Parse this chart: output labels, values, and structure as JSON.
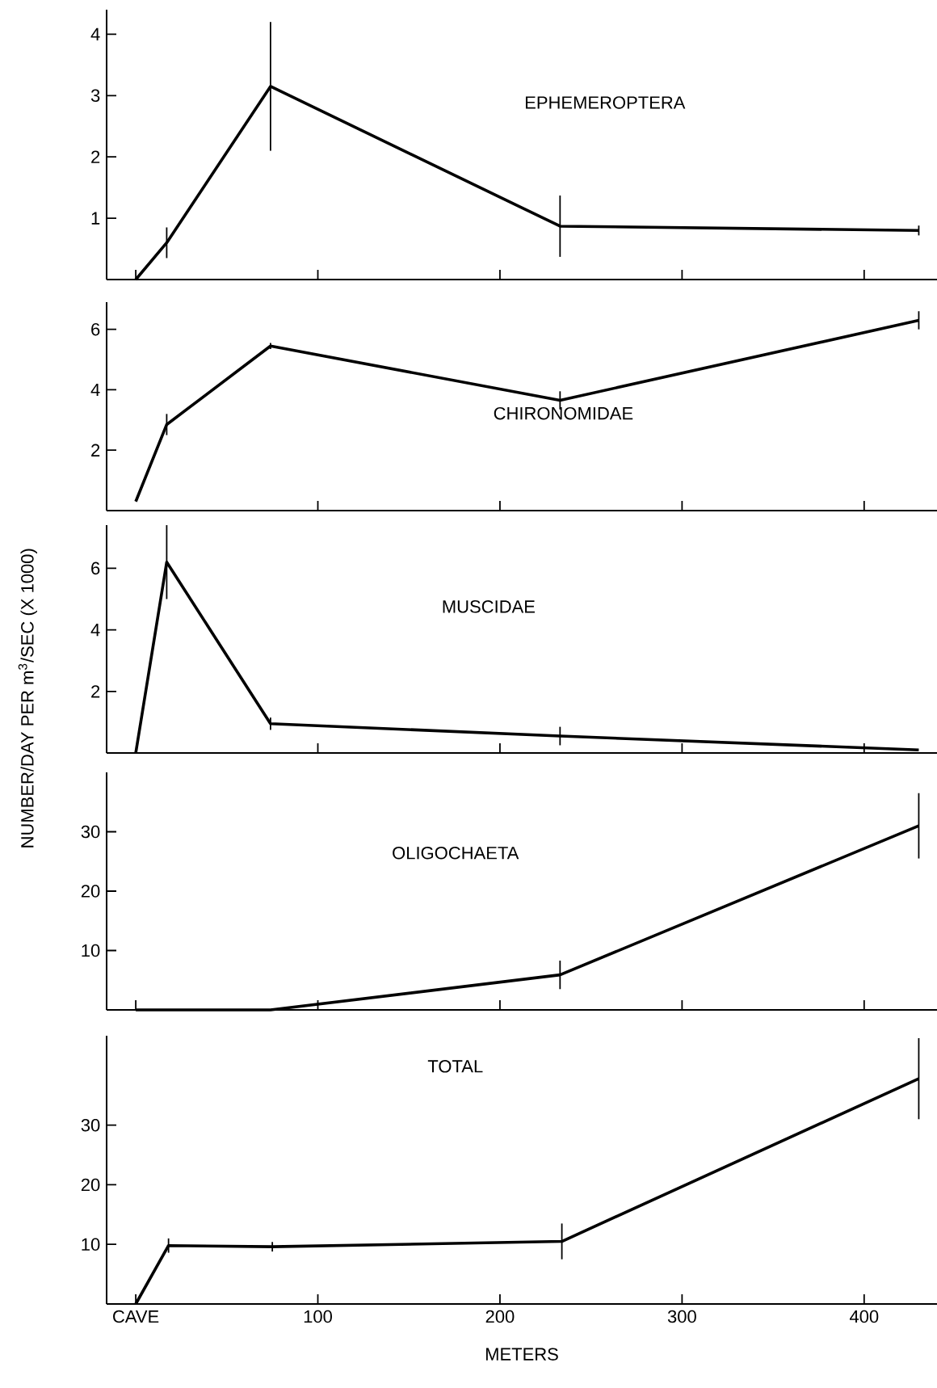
{
  "chart_data": [
    {
      "type": "line",
      "title": "EPHEMEROPTERA",
      "x": [
        0,
        17,
        74,
        233,
        430
      ],
      "values": [
        0,
        0.6,
        3.15,
        0.87,
        0.8
      ],
      "errors": [
        null,
        0.25,
        1.05,
        0.5,
        0.08
      ],
      "color": "#000000",
      "xlim": [
        -16,
        440
      ],
      "ylim": [
        0,
        4.4
      ],
      "xticks": [
        {
          "value": 0,
          "label": null
        },
        {
          "value": 100,
          "label": null
        },
        {
          "value": 200,
          "label": null
        },
        {
          "value": 300,
          "label": null
        },
        {
          "value": 400,
          "label": null
        }
      ],
      "yticks": [
        1,
        2,
        3,
        4
      ],
      "tick_labels": "y"
    },
    {
      "type": "line",
      "title": "CHIRONOMIDAE",
      "x": [
        0,
        17,
        74,
        233,
        430
      ],
      "values": [
        0.3,
        2.85,
        5.45,
        3.65,
        6.3
      ],
      "errors": [
        null,
        0.35,
        0.1,
        0.3,
        0.3
      ],
      "color": "#000000",
      "xlim": [
        -16,
        440
      ],
      "ylim": [
        0,
        6.9
      ],
      "xticks": [
        {
          "value": 100,
          "label": null
        },
        {
          "value": 200,
          "label": null
        },
        {
          "value": 300,
          "label": null
        },
        {
          "value": 400,
          "label": null
        }
      ],
      "yticks": [
        2,
        4,
        6
      ],
      "tick_labels": "y"
    },
    {
      "type": "line",
      "title": "MUSCIDAE",
      "ylabel": "NUMBER/DAY PER m$^{3}$/SEC (X 1000)",
      "x": [
        0,
        17,
        74,
        233,
        430
      ],
      "values": [
        0,
        6.2,
        0.95,
        0.55,
        0.1
      ],
      "errors": [
        null,
        1.2,
        0.2,
        0.3,
        null
      ],
      "color": "#000000",
      "xlim": [
        -16,
        440
      ],
      "ylim": [
        0,
        7.4
      ],
      "xticks": [
        {
          "value": 100,
          "label": null
        },
        {
          "value": 200,
          "label": null
        },
        {
          "value": 300,
          "label": null
        },
        {
          "value": 400,
          "label": null
        }
      ],
      "yticks": [
        2,
        4,
        6
      ],
      "tick_labels": "y"
    },
    {
      "type": "line",
      "title": "OLIGOCHAETA",
      "x": [
        0,
        17,
        74,
        233,
        430
      ],
      "values": [
        0,
        0,
        0,
        5.9,
        31
      ],
      "errors": [
        null,
        null,
        null,
        2.4,
        5.5
      ],
      "color": "#000000",
      "xlim": [
        -16,
        440
      ],
      "ylim": [
        0,
        40
      ],
      "xticks": [
        {
          "value": 0,
          "label": null
        },
        {
          "value": 100,
          "label": null
        },
        {
          "value": 200,
          "label": null
        },
        {
          "value": 300,
          "label": null
        },
        {
          "value": 400,
          "label": null
        }
      ],
      "yticks": [
        10,
        20,
        30
      ],
      "tick_labels": "y"
    },
    {
      "type": "line",
      "title": "TOTAL",
      "xlabel": "METERS",
      "x": [
        0,
        18,
        75,
        234,
        430
      ],
      "values": [
        0,
        9.8,
        9.6,
        10.5,
        37.8
      ],
      "errors": [
        null,
        1.2,
        0.8,
        3,
        6.8
      ],
      "color": "#000000",
      "xlim": [
        -16,
        440
      ],
      "ylim": [
        0,
        45
      ],
      "xticks": [
        {
          "value": 0,
          "label": "CAVE"
        },
        100,
        200,
        300,
        400
      ],
      "yticks": [
        10,
        20,
        30
      ]
    }
  ]
}
